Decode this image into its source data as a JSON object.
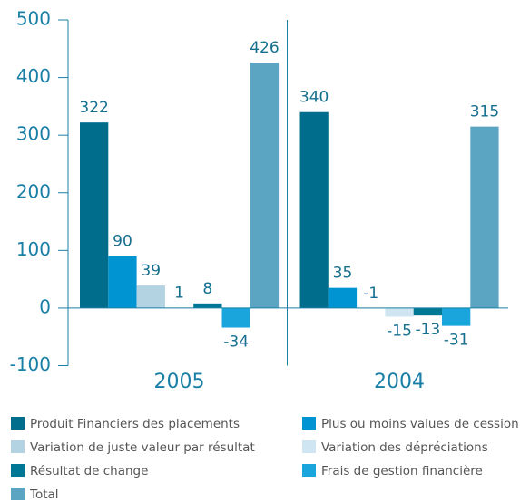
{
  "chart_data": {
    "type": "bar",
    "categories": [
      "2005",
      "2004"
    ],
    "series": [
      {
        "name": "Produit Financiers des placements",
        "color": "#006d8c",
        "values": [
          322,
          340
        ]
      },
      {
        "name": "Plus ou moins values de cession",
        "color": "#0095d2",
        "values": [
          90,
          35
        ]
      },
      {
        "name": "Variation de juste valeur par résultat",
        "color": "#b3d3e2",
        "values": [
          39,
          -1
        ]
      },
      {
        "name": "Variation des dépréciations",
        "color": "#cfe5f1",
        "values": [
          1,
          -15
        ]
      },
      {
        "name": "Résultat de change",
        "color": "#007895",
        "values": [
          8,
          -13
        ]
      },
      {
        "name": "Frais de gestion financière",
        "color": "#1aa6dc",
        "values": [
          -34,
          -31
        ]
      },
      {
        "name": "Total",
        "color": "#5ba5c3",
        "values": [
          426,
          315
        ]
      }
    ],
    "ylim": [
      -100,
      500
    ],
    "yticks": [
      -100,
      0,
      100,
      200,
      300,
      400,
      500
    ]
  }
}
